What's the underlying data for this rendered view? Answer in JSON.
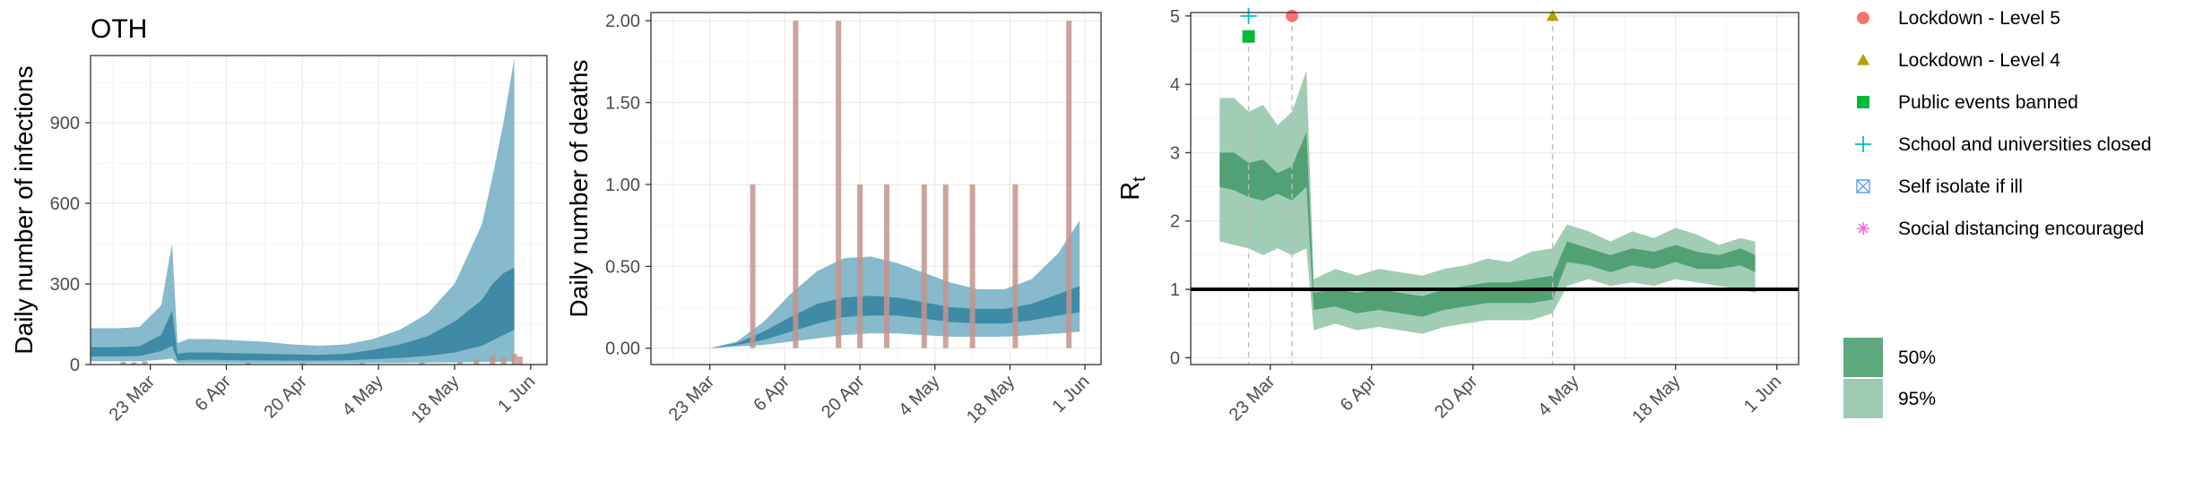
{
  "figure_title": "OTH",
  "chart_data": [
    {
      "type": "area",
      "panel": "infections",
      "xlabel": "",
      "ylabel": "Daily number of infections",
      "x_ticks": [
        "23 Mar",
        "6 Apr",
        "20 Apr",
        "4 May",
        "18 May",
        "1 Jun"
      ],
      "x_range": [
        "2020-03-12",
        "2020-06-04"
      ],
      "ylim": [
        0,
        1150
      ],
      "y_ticks": [
        "0",
        "300",
        "600",
        "900"
      ],
      "grid": true,
      "band_colors": {
        "ci95": "#7fb6c9",
        "ci50": "#3a87a4"
      },
      "bar_color": "#c4948c",
      "series": [
        {
          "name": "95% CI",
          "x": [
            "2020-03-12",
            "2020-03-17",
            "2020-03-21",
            "2020-03-25",
            "2020-03-27",
            "2020-03-28",
            "2020-03-30",
            "2020-04-03",
            "2020-04-08",
            "2020-04-13",
            "2020-04-18",
            "2020-04-23",
            "2020-04-28",
            "2020-05-03",
            "2020-05-08",
            "2020-05-13",
            "2020-05-18",
            "2020-05-23",
            "2020-05-25",
            "2020-05-27",
            "2020-05-29"
          ],
          "lower": [
            12,
            12,
            12,
            18,
            22,
            5,
            6,
            6,
            5,
            5,
            5,
            5,
            5,
            6,
            6,
            7,
            8,
            9,
            10,
            10,
            12
          ],
          "upper": [
            135,
            135,
            140,
            220,
            450,
            80,
            95,
            95,
            90,
            85,
            75,
            70,
            75,
            95,
            130,
            190,
            300,
            520,
            700,
            900,
            1140
          ]
        },
        {
          "name": "50% CI",
          "x": [
            "2020-03-12",
            "2020-03-17",
            "2020-03-21",
            "2020-03-25",
            "2020-03-27",
            "2020-03-28",
            "2020-03-30",
            "2020-04-03",
            "2020-04-08",
            "2020-04-13",
            "2020-04-18",
            "2020-04-23",
            "2020-04-28",
            "2020-05-03",
            "2020-05-08",
            "2020-05-13",
            "2020-05-18",
            "2020-05-23",
            "2020-05-25",
            "2020-05-27",
            "2020-05-29"
          ],
          "lower": [
            30,
            30,
            32,
            50,
            70,
            15,
            18,
            18,
            16,
            16,
            15,
            15,
            16,
            20,
            25,
            32,
            45,
            70,
            90,
            110,
            130
          ],
          "upper": [
            65,
            65,
            68,
            110,
            200,
            40,
            45,
            45,
            42,
            40,
            38,
            36,
            40,
            55,
            75,
            105,
            160,
            240,
            300,
            340,
            360
          ]
        }
      ],
      "bars": {
        "x": [
          "2020-03-18",
          "2020-03-20",
          "2020-03-22",
          "2020-04-10",
          "2020-04-20",
          "2020-05-01",
          "2020-05-12",
          "2020-05-19",
          "2020-05-22",
          "2020-05-25",
          "2020-05-27",
          "2020-05-29",
          "2020-05-30"
        ],
        "values": [
          10,
          8,
          12,
          5,
          6,
          5,
          8,
          12,
          20,
          35,
          25,
          40,
          30
        ]
      }
    },
    {
      "type": "area",
      "panel": "deaths",
      "xlabel": "",
      "ylabel": "Daily number of deaths",
      "x_ticks": [
        "23 Mar",
        "6 Apr",
        "20 Apr",
        "4 May",
        "18 May",
        "1 Jun"
      ],
      "x_range": [
        "2020-03-12",
        "2020-06-04"
      ],
      "ylim": [
        -0.1,
        2.05
      ],
      "y_ticks": [
        "0.00",
        "0.50",
        "1.00",
        "1.50",
        "2.00"
      ],
      "grid": true,
      "band_colors": {
        "ci95": "#7fb6c9",
        "ci50": "#3a87a4"
      },
      "bar_color": "#c4948c",
      "series": [
        {
          "name": "95% CI",
          "x": [
            "2020-03-23",
            "2020-03-28",
            "2020-04-02",
            "2020-04-07",
            "2020-04-12",
            "2020-04-17",
            "2020-04-22",
            "2020-04-27",
            "2020-05-02",
            "2020-05-07",
            "2020-05-12",
            "2020-05-17",
            "2020-05-22",
            "2020-05-27",
            "2020-05-31"
          ],
          "lower": [
            0,
            0.01,
            0.02,
            0.04,
            0.06,
            0.08,
            0.09,
            0.09,
            0.08,
            0.07,
            0.07,
            0.07,
            0.08,
            0.09,
            0.1
          ],
          "upper": [
            0,
            0.04,
            0.16,
            0.33,
            0.47,
            0.55,
            0.56,
            0.52,
            0.46,
            0.4,
            0.36,
            0.36,
            0.42,
            0.58,
            0.78
          ]
        },
        {
          "name": "50% CI",
          "x": [
            "2020-03-23",
            "2020-03-28",
            "2020-04-02",
            "2020-04-07",
            "2020-04-12",
            "2020-04-17",
            "2020-04-22",
            "2020-04-27",
            "2020-05-02",
            "2020-05-07",
            "2020-05-12",
            "2020-05-17",
            "2020-05-22",
            "2020-05-27",
            "2020-05-31"
          ],
          "lower": [
            0,
            0.02,
            0.05,
            0.1,
            0.15,
            0.19,
            0.2,
            0.2,
            0.18,
            0.16,
            0.15,
            0.15,
            0.17,
            0.2,
            0.22
          ],
          "upper": [
            0,
            0.03,
            0.1,
            0.19,
            0.27,
            0.31,
            0.32,
            0.31,
            0.28,
            0.25,
            0.24,
            0.24,
            0.27,
            0.33,
            0.38
          ]
        }
      ],
      "bars": {
        "x": [
          "2020-03-31",
          "2020-04-08",
          "2020-04-16",
          "2020-04-20",
          "2020-04-25",
          "2020-05-02",
          "2020-05-06",
          "2020-05-11",
          "2020-05-19",
          "2020-05-29"
        ],
        "values": [
          1,
          2,
          2,
          1,
          1,
          1,
          1,
          1,
          1,
          2
        ]
      }
    },
    {
      "type": "area",
      "panel": "rt",
      "xlabel": "",
      "ylabel": "R",
      "ylabel_subscript": "t",
      "x_ticks": [
        "23 Mar",
        "6 Apr",
        "20 Apr",
        "4 May",
        "18 May",
        "1 Jun"
      ],
      "x_range": [
        "2020-03-12",
        "2020-06-04"
      ],
      "ylim": [
        -0.1,
        5.05
      ],
      "y_ticks": [
        "0",
        "1",
        "2",
        "3",
        "4",
        "5"
      ],
      "grid": true,
      "reference_line": 1,
      "band_colors": {
        "ci95": "#9bcab0",
        "ci50": "#4e9e72"
      },
      "series": [
        {
          "name": "95%",
          "x": [
            "2020-03-16",
            "2020-03-18",
            "2020-03-20",
            "2020-03-22",
            "2020-03-24",
            "2020-03-26",
            "2020-03-28",
            "2020-03-29",
            "2020-04-01",
            "2020-04-04",
            "2020-04-07",
            "2020-04-10",
            "2020-04-13",
            "2020-04-16",
            "2020-04-19",
            "2020-04-22",
            "2020-04-25",
            "2020-04-28",
            "2020-05-01",
            "2020-05-03",
            "2020-05-06",
            "2020-05-09",
            "2020-05-12",
            "2020-05-15",
            "2020-05-18",
            "2020-05-21",
            "2020-05-24",
            "2020-05-27",
            "2020-05-29"
          ],
          "lower": [
            1.7,
            1.65,
            1.6,
            1.5,
            1.6,
            1.5,
            1.6,
            0.4,
            0.5,
            0.4,
            0.45,
            0.4,
            0.35,
            0.45,
            0.5,
            0.55,
            0.55,
            0.55,
            0.65,
            1.05,
            1.15,
            1.05,
            1.1,
            1.05,
            1.15,
            1.1,
            1.05,
            1.0,
            0.95
          ],
          "upper": [
            3.8,
            3.8,
            3.6,
            3.7,
            3.4,
            3.6,
            4.2,
            1.15,
            1.3,
            1.2,
            1.3,
            1.25,
            1.2,
            1.3,
            1.35,
            1.45,
            1.4,
            1.55,
            1.6,
            1.95,
            1.85,
            1.7,
            1.85,
            1.75,
            1.9,
            1.8,
            1.65,
            1.75,
            1.7
          ]
        },
        {
          "name": "50%",
          "x": [
            "2020-03-16",
            "2020-03-18",
            "2020-03-20",
            "2020-03-22",
            "2020-03-24",
            "2020-03-26",
            "2020-03-28",
            "2020-03-29",
            "2020-04-01",
            "2020-04-04",
            "2020-04-07",
            "2020-04-10",
            "2020-04-13",
            "2020-04-16",
            "2020-04-19",
            "2020-04-22",
            "2020-04-25",
            "2020-04-28",
            "2020-05-01",
            "2020-05-03",
            "2020-05-06",
            "2020-05-09",
            "2020-05-12",
            "2020-05-15",
            "2020-05-18",
            "2020-05-21",
            "2020-05-24",
            "2020-05-27",
            "2020-05-29"
          ],
          "lower": [
            2.5,
            2.45,
            2.35,
            2.3,
            2.4,
            2.3,
            2.5,
            0.7,
            0.75,
            0.65,
            0.7,
            0.65,
            0.6,
            0.7,
            0.75,
            0.8,
            0.8,
            0.8,
            0.85,
            1.4,
            1.35,
            1.25,
            1.35,
            1.3,
            1.4,
            1.3,
            1.3,
            1.35,
            1.25
          ],
          "upper": [
            3.0,
            3.0,
            2.85,
            2.9,
            2.7,
            2.8,
            3.3,
            0.95,
            1.0,
            0.95,
            1.0,
            0.95,
            0.9,
            1.0,
            1.05,
            1.1,
            1.1,
            1.15,
            1.2,
            1.7,
            1.6,
            1.5,
            1.6,
            1.55,
            1.65,
            1.55,
            1.5,
            1.6,
            1.5
          ]
        }
      ],
      "interventions": [
        {
          "label": "Lockdown - Level 5",
          "date": "2020-03-26",
          "shape": "circle",
          "color": "#f8766d",
          "y": 5.0
        },
        {
          "label": "Lockdown - Level 4",
          "date": "2020-05-01",
          "shape": "triangle",
          "color": "#b79f00",
          "y": 5.0
        },
        {
          "label": "Public events banned",
          "date": "2020-03-20",
          "shape": "square",
          "color": "#00ba38",
          "y": 4.7
        },
        {
          "label": "School and universities closed",
          "date": "2020-03-20",
          "shape": "plus",
          "color": "#00bfc4",
          "y": 5.0
        }
      ]
    }
  ],
  "legend": {
    "interventions": [
      {
        "label": "Lockdown - Level 5",
        "shape": "circle",
        "color": "#f8766d"
      },
      {
        "label": "Lockdown - Level 4",
        "shape": "triangle",
        "color": "#b79f00"
      },
      {
        "label": "Public events banned",
        "shape": "square",
        "color": "#00ba38"
      },
      {
        "label": "School and universities closed",
        "shape": "plus",
        "color": "#00bfc4"
      },
      {
        "label": "Self isolate if ill",
        "shape": "boxx",
        "color": "#619cff"
      },
      {
        "label": "Social distancing encouraged",
        "shape": "asterisk",
        "color": "#f564e3"
      }
    ],
    "bands": [
      {
        "label": "50%",
        "color": "#5ea87e"
      },
      {
        "label": "95%",
        "color": "#9bcab0"
      }
    ]
  }
}
